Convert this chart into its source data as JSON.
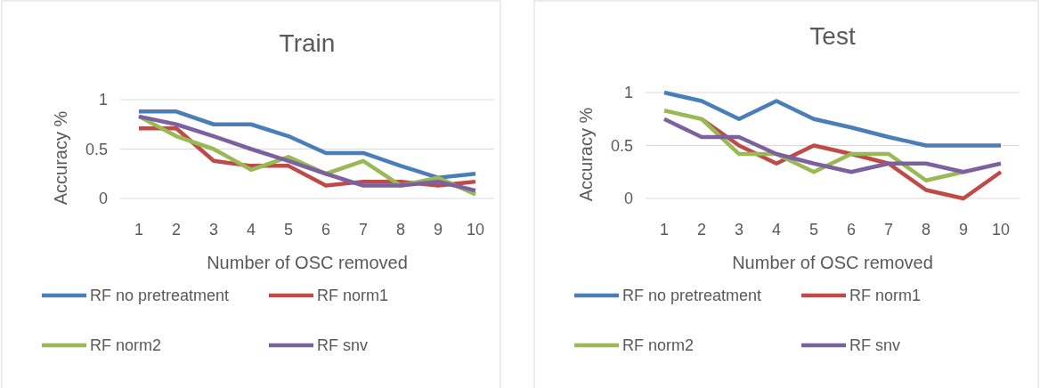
{
  "chart_data": [
    {
      "type": "line",
      "title": "Train",
      "xlabel": "Number of OSC removed",
      "ylabel": "Accuracy %",
      "categories": [
        "1",
        "2",
        "3",
        "4",
        "5",
        "6",
        "7",
        "8",
        "9",
        "10"
      ],
      "ylim": [
        0,
        1
      ],
      "yticks": [
        0,
        0.5,
        1
      ],
      "grid": "y",
      "legend": "bottom",
      "series": [
        {
          "name": "RF no pretreatment",
          "color": "#4a7ebb",
          "values": [
            0.88,
            0.88,
            0.75,
            0.75,
            0.63,
            0.46,
            0.46,
            0.33,
            0.21,
            0.25
          ]
        },
        {
          "name": "RF norm1",
          "color": "#be4b48",
          "values": [
            0.71,
            0.71,
            0.38,
            0.33,
            0.33,
            0.13,
            0.17,
            0.17,
            0.13,
            0.17
          ]
        },
        {
          "name": "RF norm2",
          "color": "#98b954",
          "values": [
            0.83,
            0.63,
            0.5,
            0.29,
            0.42,
            0.25,
            0.38,
            0.13,
            0.21,
            0.04
          ]
        },
        {
          "name": "RF snv",
          "color": "#7d60a0",
          "values": [
            0.83,
            0.75,
            0.63,
            0.5,
            0.38,
            0.25,
            0.13,
            0.13,
            0.17,
            0.08
          ]
        }
      ]
    },
    {
      "type": "line",
      "title": "Test",
      "xlabel": "Number of OSC removed",
      "ylabel": "Accuracy %",
      "categories": [
        "1",
        "2",
        "3",
        "4",
        "5",
        "6",
        "7",
        "8",
        "9",
        "10"
      ],
      "ylim": [
        0,
        1
      ],
      "yticks": [
        0,
        0.5,
        1
      ],
      "grid": "y",
      "legend": "bottom",
      "series": [
        {
          "name": "RF no pretreatment",
          "color": "#4a7ebb",
          "values": [
            1,
            0.92,
            0.75,
            0.92,
            0.75,
            0.67,
            0.58,
            0.5,
            0.5,
            0.5
          ]
        },
        {
          "name": "RF norm1",
          "color": "#be4b48",
          "values": [
            null,
            0.75,
            0.5,
            0.33,
            0.5,
            0.42,
            0.33,
            0.08,
            0,
            0.25
          ]
        },
        {
          "name": "RF norm2",
          "color": "#98b954",
          "values": [
            0.83,
            0.75,
            0.42,
            0.42,
            0.25,
            0.42,
            0.42,
            0.17,
            0.25,
            null
          ]
        },
        {
          "name": "RF snv",
          "color": "#7d60a0",
          "values": [
            0.75,
            0.58,
            0.58,
            0.42,
            0.33,
            0.25,
            0.33,
            0.33,
            0.25,
            0.33
          ]
        }
      ]
    }
  ]
}
